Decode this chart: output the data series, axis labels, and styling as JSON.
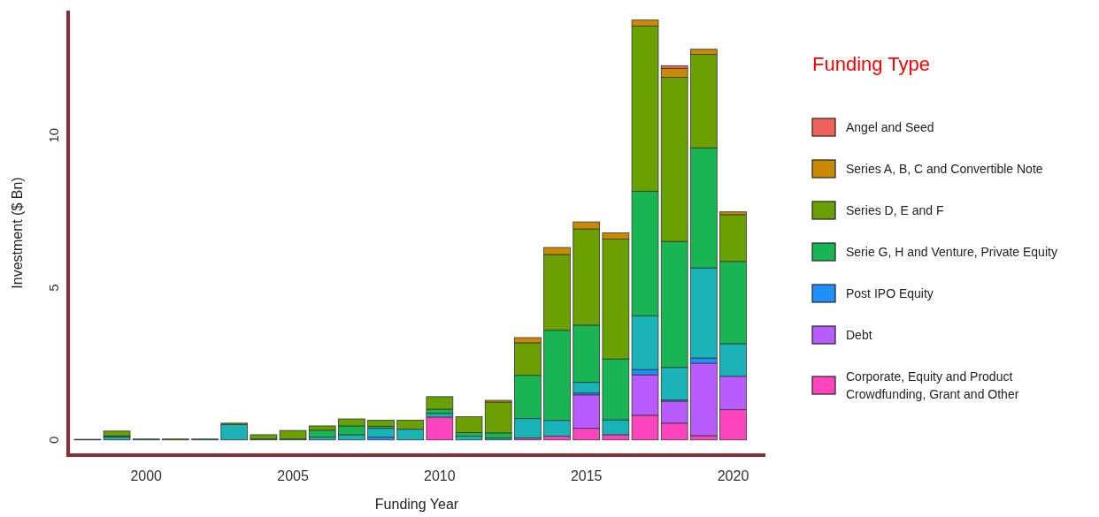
{
  "chart_data": {
    "type": "bar",
    "stacked": true,
    "xlabel": "Funding Year",
    "ylabel": "Investment ($ Bn)",
    "legend_title": "Funding Type",
    "legend": "right",
    "x": [
      1998,
      1999,
      2000,
      2001,
      2002,
      2003,
      2004,
      2005,
      2006,
      2007,
      2008,
      2009,
      2010,
      2011,
      2012,
      2013,
      2014,
      2015,
      2016,
      2017,
      2018,
      2019,
      2020
    ],
    "xlim": [
      1997.4,
      2021.1
    ],
    "xticks": [
      2000,
      2005,
      2010,
      2015,
      2020
    ],
    "ylim": [
      -0.5,
      14.1
    ],
    "yticks": [
      0,
      5,
      10
    ],
    "series": [
      {
        "name": "Corporate, Equity and Product Crowdfunding, Grant and Other",
        "color": "#ff44c0",
        "values": [
          0,
          0,
          0,
          0,
          0,
          0,
          0,
          0,
          0,
          0,
          0,
          0,
          0.75,
          0,
          0,
          0.06,
          0.12,
          0.38,
          0.17,
          0.81,
          0.55,
          0.14,
          0.99
        ]
      },
      {
        "name": "Debt",
        "color": "#b85cff",
        "values": [
          0,
          0,
          0,
          0,
          0,
          0,
          0,
          0,
          0,
          0,
          0,
          0,
          0,
          0,
          0,
          0,
          0,
          1.1,
          null,
          1.33,
          0.72,
          2.38,
          1.1
        ]
      },
      {
        "name": "Post IPO Equity",
        "color": "#1e90ff",
        "values": [
          0,
          0,
          0,
          0,
          0,
          0,
          0,
          0,
          0,
          0,
          0.09,
          0,
          0,
          0,
          0,
          0,
          0,
          0.06,
          0,
          0.17,
          0.04,
          0.17,
          0
        ]
      },
      {
        "color": "#1ab3b8",
        "values": [
          0.02,
          0.1,
          0.03,
          0,
          0.03,
          0.51,
          0.03,
          0.03,
          0.09,
          0.17,
          0.29,
          0.35,
          0.12,
          0.12,
          0.06,
          0.64,
          0.52,
          0.35,
          0.49,
          1.77,
          1.07,
          2.96,
          1.07
        ]
      },
      {
        "name": "Serie G, H and Venture, Private Equity",
        "color": "#19b553",
        "values": [
          0,
          0.03,
          0,
          0,
          0,
          0,
          0,
          0,
          0.23,
          0.29,
          0.07,
          0,
          0.14,
          0.12,
          0.17,
          1.42,
          2.96,
          1.88,
          2.0,
          4.09,
          4.14,
          3.94,
          2.7
        ]
      },
      {
        "name": "Series D, E and F",
        "color": "#6aa100",
        "values": [
          0,
          0.16,
          0,
          0.03,
          0,
          0.04,
          0.14,
          0.28,
          0.14,
          0.23,
          0.2,
          0.3,
          0.41,
          0.52,
          1.01,
          1.07,
          2.49,
          3.16,
          3.94,
          5.42,
          5.39,
          3.07,
          1.54
        ]
      },
      {
        "name": "Series A, B, C and Convertible Note",
        "color": "#c98a00",
        "values": [
          0,
          0,
          0,
          0,
          0,
          0,
          0,
          0,
          0,
          0,
          0,
          0,
          0,
          0,
          0.06,
          0.17,
          0.23,
          0.23,
          0.2,
          0.2,
          0.29,
          0.17,
          0.09
        ]
      },
      {
        "name": "Angel and Seed",
        "color": "#f0625a",
        "values": [
          0,
          0,
          0,
          0,
          0,
          0,
          0,
          0,
          0,
          0,
          0,
          0,
          0,
          0,
          0,
          0,
          0,
          0,
          0,
          0,
          0.09,
          0,
          0
        ]
      }
    ]
  }
}
